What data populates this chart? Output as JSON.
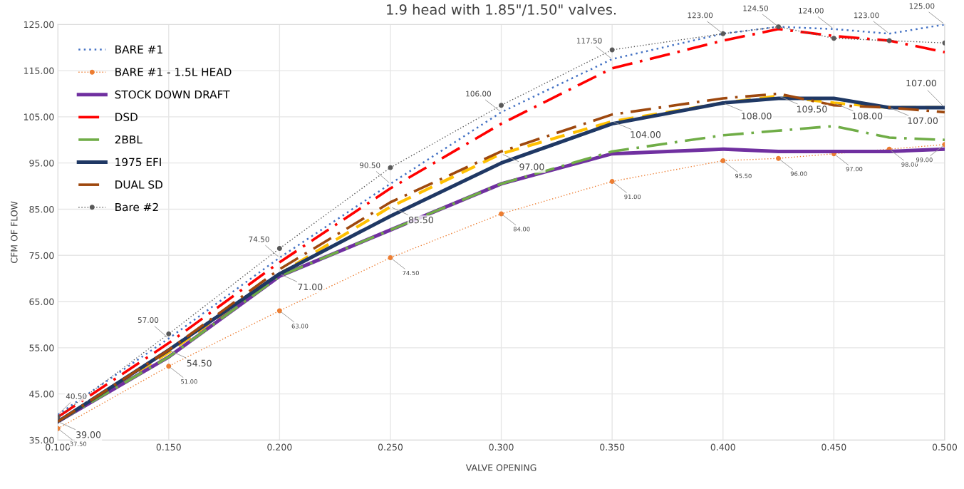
{
  "chart_data": {
    "type": "line",
    "title": "1.9 head with 1.85\"/1.50\" valves.",
    "xlabel": "VALVE OPENING",
    "ylabel": "CFM OF FLOW",
    "x": [
      0.1,
      0.15,
      0.2,
      0.25,
      0.3,
      0.35,
      0.4,
      0.425,
      0.45,
      0.475,
      0.5
    ],
    "series": [
      {
        "name": "BARE #1",
        "color": "#4472c4",
        "line_style": "dotted",
        "marker": "none",
        "values": [
          40.5,
          57,
          74.5,
          90.5,
          106,
          117.5,
          123,
          124.5,
          124,
          123,
          125
        ]
      },
      {
        "name": "BARE #1 - 1.5L HEAD",
        "color": "#ed7d31",
        "line_style": "dotted",
        "marker": "circle",
        "values": [
          37.5,
          51,
          63,
          74.5,
          84,
          91,
          95.5,
          96,
          97,
          98,
          99
        ]
      },
      {
        "color": "#ffc000",
        "line_style": "dashed",
        "marker": "none",
        "values": [
          39,
          54,
          71,
          85.5,
          97,
          104,
          108,
          109.5,
          108,
          107,
          107
        ]
      },
      {
        "name": "STOCK DOWN DRAFT",
        "color": "#7030a0",
        "line_style": "solid",
        "marker": "none",
        "values": [
          39,
          53,
          70.5,
          80.5,
          90.5,
          97,
          98,
          97.5,
          97.5,
          97.5,
          98
        ]
      },
      {
        "name": "DSD",
        "color": "#ff0000",
        "line_style": "dashdot",
        "marker": "none",
        "values": [
          40,
          56,
          73.5,
          89.5,
          103.5,
          115.5,
          121.5,
          124,
          122.5,
          121.5,
          119
        ]
      },
      {
        "name": "2BBL",
        "color": "#70ad47",
        "line_style": "dashdot",
        "marker": "none",
        "values": [
          39,
          53,
          70.5,
          80.5,
          90.5,
          97.5,
          101,
          102,
          103,
          100.5,
          100
        ]
      },
      {
        "name": "1975 EFI",
        "color": "#1f3864",
        "line_style": "solid",
        "marker": "none",
        "values": [
          39,
          54.5,
          71,
          83.5,
          95,
          103.5,
          108,
          109,
          109,
          107,
          107
        ]
      },
      {
        "name": "DUAL SD",
        "color": "#9e480e",
        "line_style": "dashdot",
        "marker": "none",
        "values": [
          39,
          54.5,
          72,
          86.5,
          97.5,
          105.5,
          109,
          110,
          107.5,
          107,
          106
        ]
      },
      {
        "name": "Bare #2",
        "color": "#595959",
        "line_style": "dotted",
        "marker": "circle",
        "values": [
          40,
          58,
          76.5,
          94,
          107.5,
          119.5,
          123,
          124.5,
          122,
          121.5,
          121
        ]
      }
    ],
    "xlim": [
      0.1,
      0.5
    ],
    "xticks": [
      {
        "value": 0.1,
        "label": "0.100"
      },
      {
        "value": 0.15,
        "label": "0.150"
      },
      {
        "value": 0.2,
        "label": "0.200"
      },
      {
        "value": 0.25,
        "label": "0.250"
      },
      {
        "value": 0.3,
        "label": "0.300"
      },
      {
        "value": 0.35,
        "label": "0.350"
      },
      {
        "value": 0.4,
        "label": "0.400"
      },
      {
        "value": 0.45,
        "label": "0.450"
      },
      {
        "value": 0.5,
        "label": "0.500"
      }
    ],
    "ylim": [
      35,
      125
    ],
    "yticks": [
      {
        "value": 35,
        "label": "35.00"
      },
      {
        "value": 45,
        "label": "45.00"
      },
      {
        "value": 55,
        "label": "55.00"
      },
      {
        "value": 65,
        "label": "65.00"
      },
      {
        "value": 75,
        "label": "75.00"
      },
      {
        "value": 85,
        "label": "85.00"
      },
      {
        "value": 95,
        "label": "95.00"
      },
      {
        "value": 105,
        "label": "105.00"
      },
      {
        "value": 115,
        "label": "115.00"
      },
      {
        "value": 125,
        "label": "125.00"
      }
    ],
    "grid": true,
    "legend": "top left",
    "annotations": [
      {
        "text": "40.50",
        "x": 0.1,
        "y": 40.5
      },
      {
        "text": "39.00",
        "x": 0.1,
        "y": 39
      },
      {
        "text": "37.50",
        "x": 0.1,
        "y": 37.5
      },
      {
        "text": "57.00",
        "x": 0.15,
        "y": 57
      },
      {
        "text": "54.50",
        "x": 0.15,
        "y": 54.5
      },
      {
        "text": "51.00",
        "x": 0.15,
        "y": 51
      },
      {
        "text": "74.50",
        "x": 0.2,
        "y": 74.5
      },
      {
        "text": "71.00",
        "x": 0.2,
        "y": 71
      },
      {
        "text": "63.00",
        "x": 0.2,
        "y": 63
      },
      {
        "text": "90.50",
        "x": 0.25,
        "y": 90.5
      },
      {
        "text": "85.50",
        "x": 0.25,
        "y": 85.5
      },
      {
        "text": "74.50",
        "x": 0.25,
        "y": 74.5
      },
      {
        "text": "106.00",
        "x": 0.3,
        "y": 106
      },
      {
        "text": "97.00",
        "x": 0.3,
        "y": 97
      },
      {
        "text": "84.00",
        "x": 0.3,
        "y": 84
      },
      {
        "text": "117.50",
        "x": 0.35,
        "y": 117.5
      },
      {
        "text": "104.00",
        "x": 0.35,
        "y": 104
      },
      {
        "text": "91.00",
        "x": 0.35,
        "y": 91
      },
      {
        "text": "123.00",
        "x": 0.4,
        "y": 123
      },
      {
        "text": "108.00",
        "x": 0.4,
        "y": 108
      },
      {
        "text": "95.50",
        "x": 0.4,
        "y": 95.5
      },
      {
        "text": "124.50",
        "x": 0.425,
        "y": 124.5
      },
      {
        "text": "109.50",
        "x": 0.425,
        "y": 109.5
      },
      {
        "text": "96.00",
        "x": 0.425,
        "y": 96
      },
      {
        "text": "124.00",
        "x": 0.45,
        "y": 124
      },
      {
        "text": "108.00",
        "x": 0.45,
        "y": 108
      },
      {
        "text": "97.00",
        "x": 0.45,
        "y": 97
      },
      {
        "text": "123.00",
        "x": 0.475,
        "y": 123
      },
      {
        "text": "107.00",
        "x": 0.475,
        "y": 107
      },
      {
        "text": "98.00",
        "x": 0.475,
        "y": 98
      },
      {
        "text": "125.00",
        "x": 0.5,
        "y": 125
      },
      {
        "text": "107.00",
        "x": 0.5,
        "y": 107
      },
      {
        "text": "99.00",
        "x": 0.5,
        "y": 99
      }
    ]
  }
}
